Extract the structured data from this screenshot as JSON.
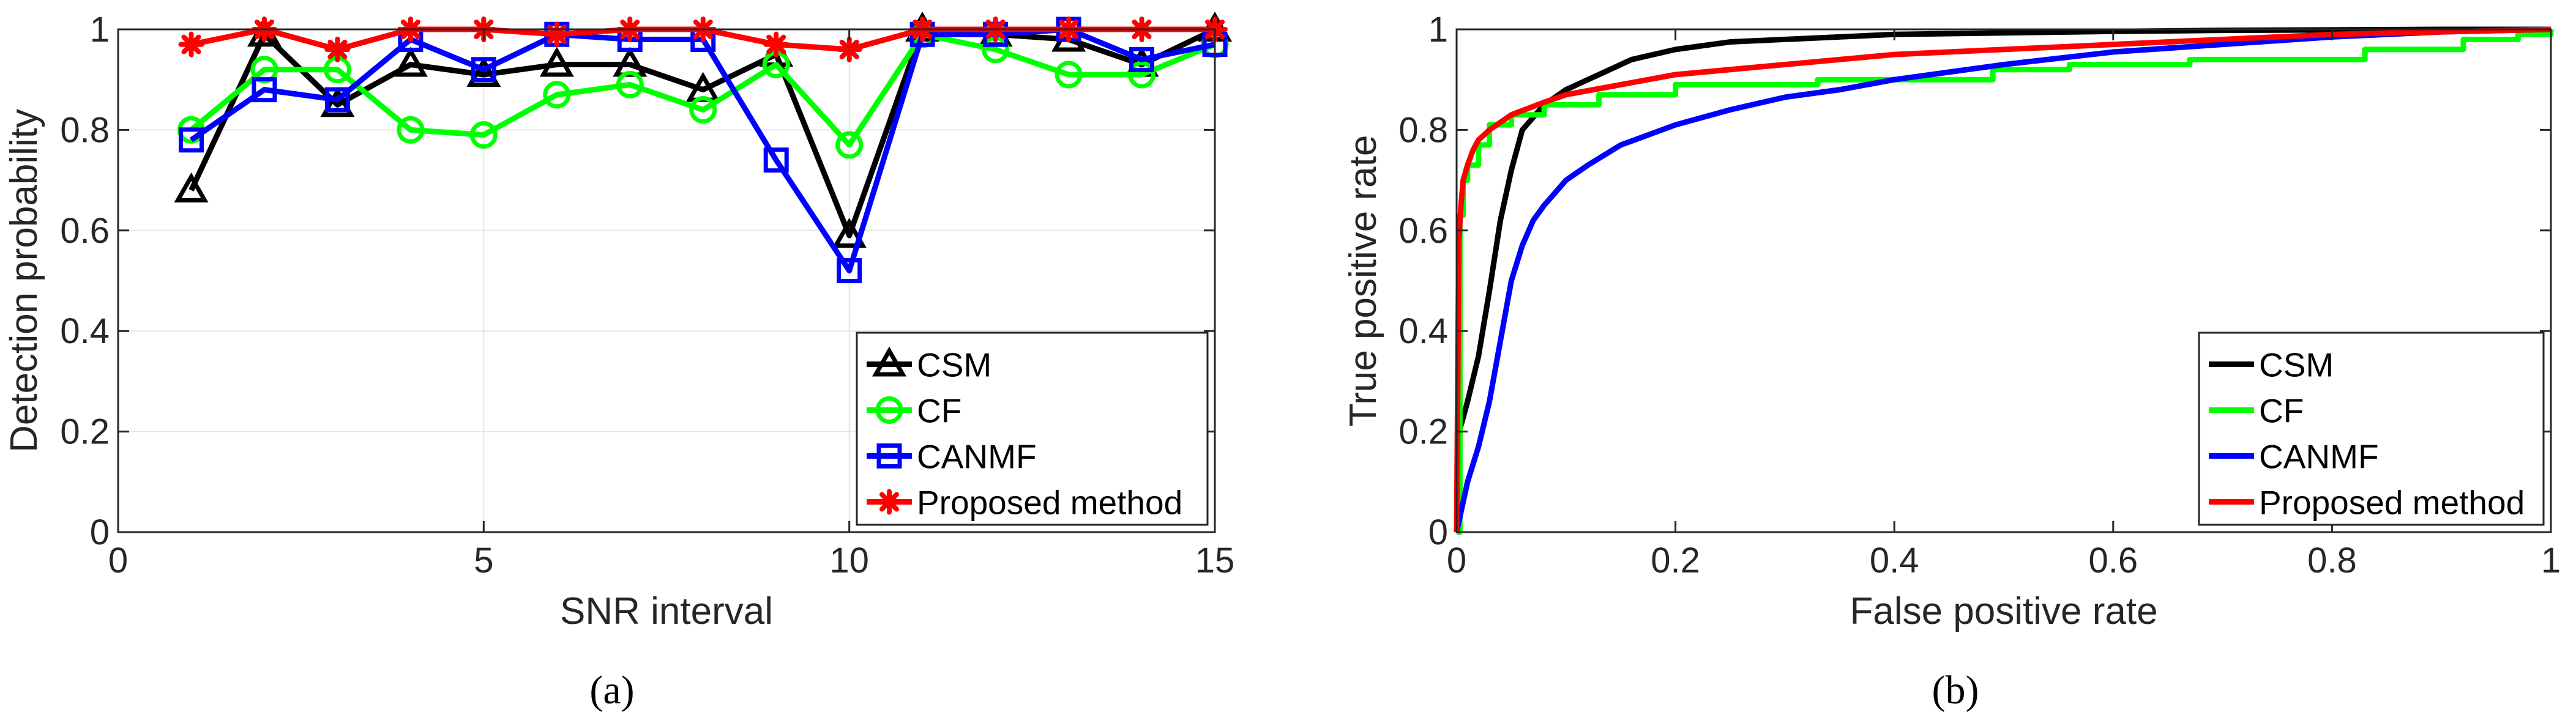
{
  "figure": {
    "panel_labels": [
      "(a)",
      "(b)"
    ]
  },
  "chart_data": [
    {
      "id": "a",
      "type": "line",
      "title": "",
      "xlabel": "SNR interval",
      "ylabel": "Detection probability",
      "xlim": [
        0,
        15
      ],
      "ylim": [
        0,
        1
      ],
      "xticks": [
        0,
        5,
        10,
        15
      ],
      "yticks": [
        0,
        0.2,
        0.4,
        0.6,
        0.8,
        1
      ],
      "xtick_labels": [
        "0",
        "5",
        "10",
        "15"
      ],
      "ytick_labels": [
        "0",
        "0.2",
        "0.4",
        "0.6",
        "0.8",
        "1"
      ],
      "grid": true,
      "legend_position": "bottom-right",
      "x": [
        1,
        2,
        3,
        4,
        5,
        6,
        7,
        8,
        9,
        10,
        11,
        12,
        13,
        14,
        15
      ],
      "series": [
        {
          "name": "CSM",
          "color": "#000000",
          "marker": "triangle",
          "values": [
            0.68,
            0.99,
            0.85,
            0.93,
            0.91,
            0.93,
            0.93,
            0.88,
            0.95,
            0.59,
            1.0,
            0.99,
            0.98,
            0.93,
            1.0
          ]
        },
        {
          "name": "CF",
          "color": "#00ff00",
          "marker": "circle",
          "values": [
            0.8,
            0.92,
            0.92,
            0.8,
            0.79,
            0.87,
            0.89,
            0.84,
            0.93,
            0.77,
            0.99,
            0.96,
            0.91,
            0.91,
            0.97
          ]
        },
        {
          "name": "CANMF",
          "color": "#0000ff",
          "marker": "square",
          "values": [
            0.78,
            0.88,
            0.86,
            0.98,
            0.92,
            0.99,
            0.98,
            0.98,
            0.74,
            0.52,
            0.99,
            0.99,
            1.0,
            0.94,
            0.97
          ]
        },
        {
          "name": "Proposed method",
          "color": "#ff0000",
          "marker": "asterisk",
          "values": [
            0.97,
            1.0,
            0.96,
            1.0,
            1.0,
            0.99,
            1.0,
            1.0,
            0.97,
            0.96,
            1.0,
            1.0,
            1.0,
            1.0,
            1.0
          ]
        }
      ]
    },
    {
      "id": "b",
      "type": "line",
      "title": "",
      "xlabel": "False positive rate",
      "ylabel": "True positive rate",
      "xlim": [
        0,
        1
      ],
      "ylim": [
        0,
        1
      ],
      "xticks": [
        0,
        0.2,
        0.4,
        0.6,
        0.8,
        1
      ],
      "yticks": [
        0,
        0.2,
        0.4,
        0.6,
        0.8,
        1
      ],
      "xtick_labels": [
        "0",
        "0.2",
        "0.4",
        "0.6",
        "0.8",
        "1"
      ],
      "ytick_labels": [
        "0",
        "0.2",
        "0.4",
        "0.6",
        "0.8",
        "1"
      ],
      "grid": false,
      "legend_position": "bottom-right",
      "series": [
        {
          "name": "CSM",
          "color": "#000000",
          "x": [
            0,
            0.002,
            0.005,
            0.01,
            0.02,
            0.03,
            0.04,
            0.05,
            0.06,
            0.08,
            0.1,
            0.13,
            0.16,
            0.2,
            0.25,
            0.3,
            0.4,
            0.5,
            0.6,
            0.7,
            0.8,
            0.9,
            1.0
          ],
          "y": [
            0,
            0.2,
            0.22,
            0.26,
            0.35,
            0.48,
            0.62,
            0.72,
            0.8,
            0.85,
            0.88,
            0.91,
            0.94,
            0.96,
            0.975,
            0.98,
            0.99,
            0.993,
            0.996,
            0.998,
            0.999,
            1.0,
            1.0
          ]
        },
        {
          "name": "CF",
          "color": "#00ff00",
          "step": true,
          "x": [
            0,
            0.003,
            0.006,
            0.01,
            0.02,
            0.03,
            0.05,
            0.08,
            0.13,
            0.2,
            0.33,
            0.49,
            0.56,
            0.67,
            0.83,
            0.92,
            0.97,
            1.0
          ],
          "y": [
            0,
            0.63,
            0.7,
            0.73,
            0.77,
            0.81,
            0.83,
            0.85,
            0.87,
            0.89,
            0.9,
            0.92,
            0.93,
            0.94,
            0.96,
            0.98,
            0.99,
            1.0
          ]
        },
        {
          "name": "CANMF",
          "color": "#0000ff",
          "x": [
            0,
            0.005,
            0.01,
            0.02,
            0.03,
            0.04,
            0.05,
            0.06,
            0.07,
            0.08,
            0.1,
            0.12,
            0.15,
            0.2,
            0.25,
            0.3,
            0.35,
            0.4,
            0.5,
            0.6,
            0.7,
            0.8,
            0.9,
            1.0
          ],
          "y": [
            0,
            0.05,
            0.1,
            0.17,
            0.26,
            0.38,
            0.5,
            0.57,
            0.62,
            0.65,
            0.7,
            0.73,
            0.77,
            0.81,
            0.84,
            0.865,
            0.88,
            0.9,
            0.93,
            0.955,
            0.97,
            0.985,
            0.995,
            1.0
          ]
        },
        {
          "name": "Proposed method",
          "color": "#ff0000",
          "x": [
            0,
            0.002,
            0.004,
            0.006,
            0.01,
            0.015,
            0.02,
            0.03,
            0.05,
            0.08,
            0.1,
            0.15,
            0.2,
            0.3,
            0.4,
            0.5,
            0.6,
            0.7,
            0.8,
            0.9,
            1.0
          ],
          "y": [
            0,
            0.58,
            0.65,
            0.7,
            0.73,
            0.76,
            0.78,
            0.8,
            0.83,
            0.855,
            0.87,
            0.89,
            0.91,
            0.93,
            0.95,
            0.96,
            0.97,
            0.98,
            0.99,
            0.995,
            1.0
          ]
        }
      ]
    }
  ]
}
